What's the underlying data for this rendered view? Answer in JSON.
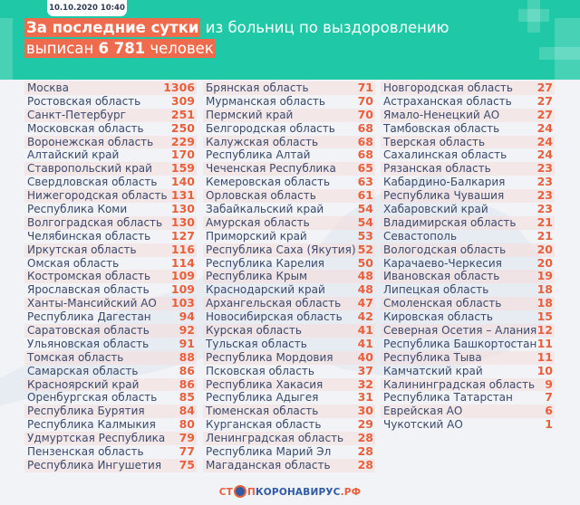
{
  "header": {
    "date": "10.10.2020 10:40",
    "title_highlight": "За последние сутки",
    "title_rest": " из больниц по выздоровлению",
    "subtitle_pre": "выписан ",
    "subtitle_number": "6 781",
    "subtitle_post": " человек"
  },
  "colors": {
    "header_bg": "#1fc8a6",
    "accent": "#ee6b4d",
    "text": "#3b4a6b",
    "number": "#e8603c"
  },
  "columns": [
    [
      [
        "Москва",
        "1306"
      ],
      [
        "Ростовская область",
        "309"
      ],
      [
        "Санкт-Петербург",
        "251"
      ],
      [
        "Московская область",
        "250"
      ],
      [
        "Воронежская область",
        "229"
      ],
      [
        "Алтайский край",
        "170"
      ],
      [
        "Ставропольский край",
        "159"
      ],
      [
        "Свердловская область",
        "140"
      ],
      [
        "Нижегородская область",
        "131"
      ],
      [
        "Республика Коми",
        "130"
      ],
      [
        "Волгоградская область",
        "130"
      ],
      [
        "Челябинская область",
        "127"
      ],
      [
        "Иркутская область",
        "116"
      ],
      [
        "Омская область",
        "114"
      ],
      [
        "Костромская область",
        "109"
      ],
      [
        "Ярославская область",
        "109"
      ],
      [
        "Ханты-Мансийский АО",
        "103"
      ],
      [
        "Республика Дагестан",
        "94"
      ],
      [
        "Саратовская область",
        "92"
      ],
      [
        "Ульяновская область",
        "91"
      ],
      [
        "Томская область",
        "88"
      ],
      [
        "Самарская область",
        "86"
      ],
      [
        "Красноярский край",
        "86"
      ],
      [
        "Оренбургская область",
        "85"
      ],
      [
        "Республика Бурятия",
        "84"
      ],
      [
        "Республика Калмыкия",
        "80"
      ],
      [
        "Удмуртская Республика",
        "79"
      ],
      [
        "Пензенская область",
        "77"
      ],
      [
        "Республика Ингушетия",
        "75"
      ]
    ],
    [
      [
        "Брянская область",
        "71"
      ],
      [
        "Мурманская область",
        "70"
      ],
      [
        "Пермский край",
        "70"
      ],
      [
        "Белгородская область",
        "68"
      ],
      [
        "Калужская область",
        "68"
      ],
      [
        "Республика Алтай",
        "68"
      ],
      [
        "Чеченская Республика",
        "65"
      ],
      [
        "Кемеровская область",
        "63"
      ],
      [
        "Орловская область",
        "61"
      ],
      [
        "Забайкальский край",
        "54"
      ],
      [
        "Амурская область",
        "54"
      ],
      [
        "Приморский край",
        "53"
      ],
      [
        "Республика Саха (Якутия)",
        "52"
      ],
      [
        "Республика Карелия",
        "50"
      ],
      [
        "Республика Крым",
        "48"
      ],
      [
        "Краснодарский край",
        "48"
      ],
      [
        "Архангельская область",
        "47"
      ],
      [
        "Новосибирская область",
        "42"
      ],
      [
        "Курская область",
        "41"
      ],
      [
        "Тульская область",
        "41"
      ],
      [
        "Республика Мордовия",
        "40"
      ],
      [
        "Псковская область",
        "37"
      ],
      [
        "Республика Хакасия",
        "32"
      ],
      [
        "Республика Адыгея",
        "31"
      ],
      [
        "Тюменская область",
        "30"
      ],
      [
        "Курганская область",
        "29"
      ],
      [
        "Ленинградская область",
        "28"
      ],
      [
        "Республика Марий Эл",
        "28"
      ],
      [
        "Магаданская область",
        "28"
      ]
    ],
    [
      [
        "Новгородская область",
        "27"
      ],
      [
        "Астраханская область",
        "27"
      ],
      [
        "Ямало-Ненецкий АО",
        "27"
      ],
      [
        "Тамбовская область",
        "24"
      ],
      [
        "Тверская область",
        "24"
      ],
      [
        "Сахалинская область",
        "24"
      ],
      [
        "Рязанская область",
        "23"
      ],
      [
        "Кабардино-Балкария",
        "23"
      ],
      [
        "Республика Чувашия",
        "23"
      ],
      [
        "Хабаровский край",
        "23"
      ],
      [
        "Владимирская область",
        "21"
      ],
      [
        "Севастополь",
        "21"
      ],
      [
        "Вологодская область",
        "20"
      ],
      [
        "Карачаево-Черкесия",
        "20"
      ],
      [
        "Ивановская область",
        "19"
      ],
      [
        "Липецкая область",
        "18"
      ],
      [
        "Смоленская область",
        "18"
      ],
      [
        "Кировская область",
        "15"
      ],
      [
        "Северная Осетия – Алания",
        "12"
      ],
      [
        "Республика Башкортостан",
        "11"
      ],
      [
        "Республика Тыва",
        "11"
      ],
      [
        "Камчатский край",
        "10"
      ],
      [
        "Калининградская область",
        "9"
      ],
      [
        "Республика Татарстан",
        "7"
      ],
      [
        "Еврейская АО",
        "6"
      ],
      [
        "Чукотский АО",
        "1"
      ]
    ]
  ],
  "footer": {
    "logo_part1": "СТ",
    "logo_part2": "П",
    "logo_part3": "КОРОНАВИРУС",
    "logo_part4": ".РФ"
  }
}
